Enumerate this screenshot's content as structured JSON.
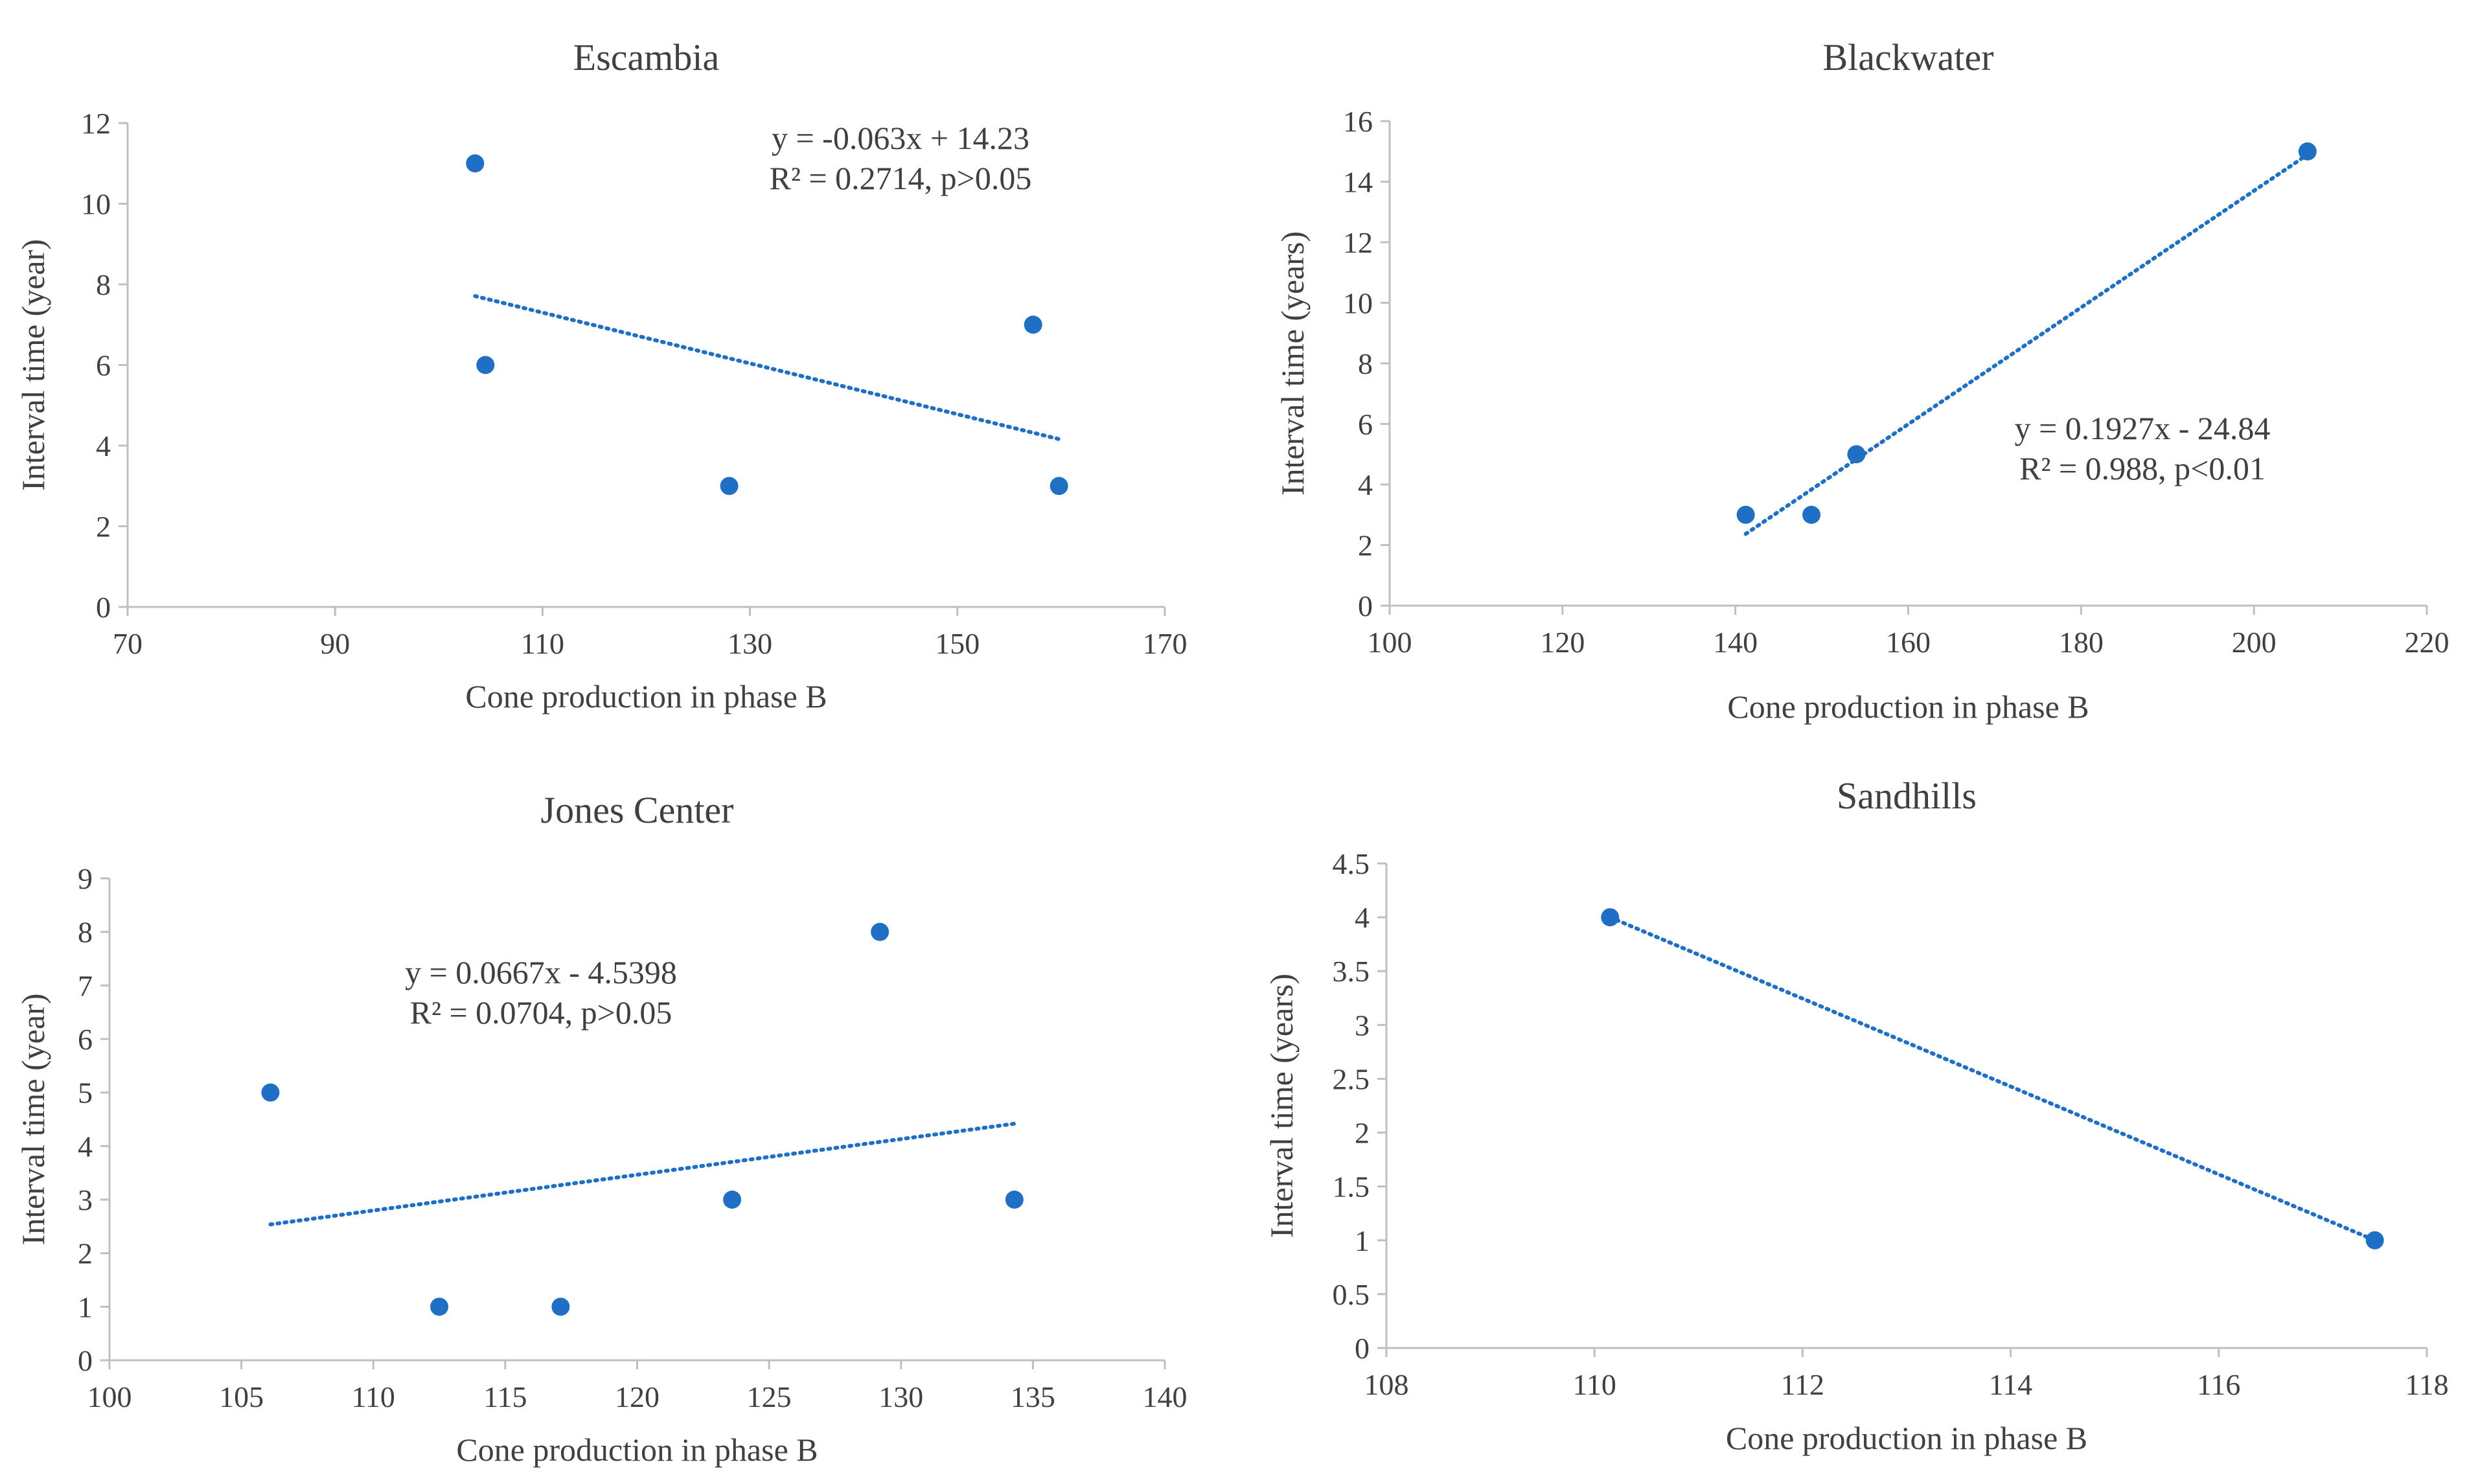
{
  "chart_data": [
    {
      "id": "escambia",
      "type": "scatter",
      "title": "Escambia",
      "xlabel": "Cone production in phase B",
      "ylabel": "Interval time (year)",
      "xlim": [
        70,
        170
      ],
      "ylim": [
        0,
        12
      ],
      "xticks": [
        70,
        90,
        110,
        130,
        150,
        170
      ],
      "yticks": [
        0,
        2,
        4,
        6,
        8,
        10,
        12
      ],
      "points": [
        [
          103.5,
          11
        ],
        [
          104.5,
          6
        ],
        [
          128,
          3
        ],
        [
          157.3,
          7
        ],
        [
          159.8,
          3
        ]
      ],
      "trendline": {
        "slope": -0.063,
        "intercept": 14.23,
        "x_range": [
          103.5,
          159.8
        ]
      },
      "equation": "y = -0.063x + 14.23",
      "r2_text": "R² = 0.2714, p>0.05",
      "annotation_position": "top-right"
    },
    {
      "id": "blackwater",
      "type": "scatter",
      "title": "Blackwater",
      "xlabel": "Cone production in phase B",
      "ylabel": "Interval time (years)",
      "xlim": [
        100,
        220
      ],
      "ylim": [
        0,
        16
      ],
      "xticks": [
        100,
        120,
        140,
        160,
        180,
        200,
        220
      ],
      "yticks": [
        0,
        2,
        4,
        6,
        8,
        10,
        12,
        14,
        16
      ],
      "points": [
        [
          141.2,
          3
        ],
        [
          148.8,
          3
        ],
        [
          154,
          5
        ],
        [
          206.2,
          15
        ]
      ],
      "trendline": {
        "slope": 0.1927,
        "intercept": -24.84,
        "x_range": [
          141.2,
          206.2
        ]
      },
      "equation": "y = 0.1927x - 24.84",
      "r2_text": "R² = 0.988, p<0.01",
      "annotation_position": "middle-right"
    },
    {
      "id": "jones-center",
      "type": "scatter",
      "title": "Jones Center",
      "xlabel": "Cone production in phase B",
      "ylabel": "Interval time (year)",
      "xlim": [
        100,
        140
      ],
      "ylim": [
        0,
        9
      ],
      "xticks": [
        100,
        105,
        110,
        115,
        120,
        125,
        130,
        135,
        140
      ],
      "yticks": [
        0,
        1,
        2,
        3,
        4,
        5,
        6,
        7,
        8,
        9
      ],
      "points": [
        [
          106.1,
          5
        ],
        [
          112.5,
          1
        ],
        [
          117.1,
          1
        ],
        [
          123.6,
          3
        ],
        [
          129.2,
          8
        ],
        [
          134.3,
          3
        ]
      ],
      "trendline": {
        "slope": 0.0667,
        "intercept": -4.5398,
        "x_range": [
          106.1,
          134.3
        ]
      },
      "equation": "y = 0.0667x - 4.5398",
      "r2_text": "R² = 0.0704, p>0.05",
      "annotation_position": "top-left"
    },
    {
      "id": "sandhills",
      "type": "scatter",
      "title": "Sandhills",
      "xlabel": "Cone production in phase B",
      "ylabel": "Interval time (years)",
      "xlim": [
        108,
        118
      ],
      "ylim": [
        0,
        4.5
      ],
      "xticks": [
        108,
        110,
        112,
        114,
        116,
        118
      ],
      "yticks": [
        0,
        0.5,
        1,
        1.5,
        2,
        2.5,
        3,
        3.5,
        4,
        4.5
      ],
      "points": [
        [
          110.15,
          4
        ],
        [
          117.5,
          1
        ]
      ],
      "trendline": {
        "points": [
          [
            110.15,
            4
          ],
          [
            117.5,
            1
          ]
        ]
      },
      "equation": "",
      "r2_text": "",
      "annotation_position": "none"
    }
  ]
}
